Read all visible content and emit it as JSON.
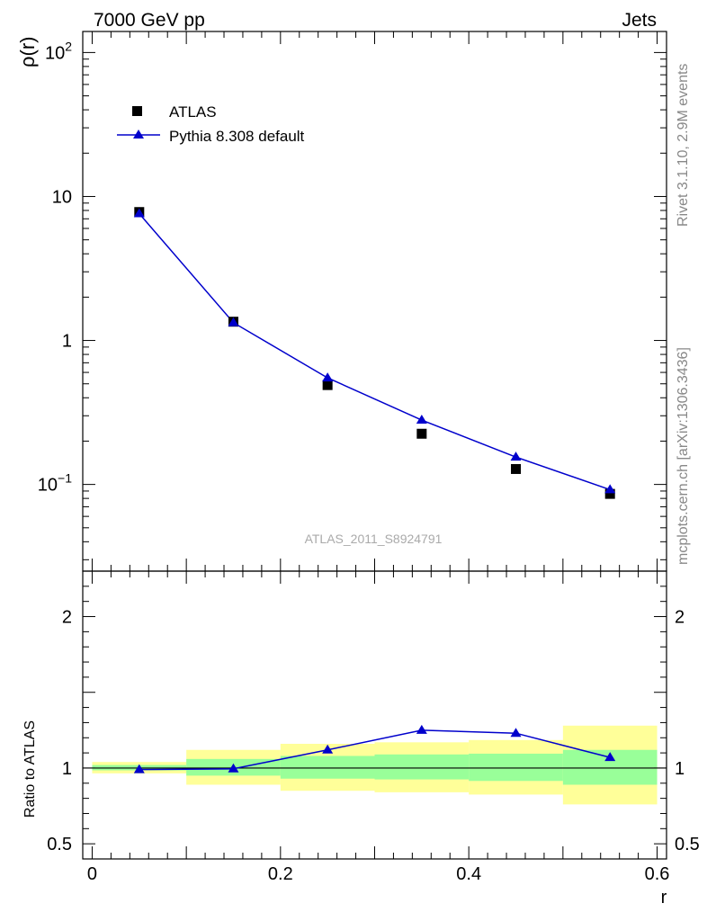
{
  "header": {
    "left_label": "7000 GeV pp",
    "right_label": "Jets"
  },
  "side_labels": {
    "rivet": "Rivet 3.1.10,  2.9M events",
    "mcplots": "mcplots.cern.ch [arXiv:1306.3436]"
  },
  "colors": {
    "data": "#000000",
    "mc": "#0000cc",
    "band_inner": "#99ff99",
    "band_outer": "#ffff99"
  },
  "chart_data": [
    {
      "type": "scatter",
      "panel": "main",
      "title": "",
      "watermark": "ATLAS_2011_S8924791",
      "xlabel": "",
      "ylabel": "ρ(r)",
      "yscale": "log",
      "xlim": [
        -0.01,
        0.61
      ],
      "ylim": [
        0.025,
        140
      ],
      "y_ticks": [
        {
          "value": 0.1,
          "base": "10",
          "exp": "−1"
        },
        {
          "value": 1,
          "label": "1"
        },
        {
          "value": 10,
          "label": "10"
        },
        {
          "value": 100,
          "base": "10",
          "exp": "2"
        }
      ],
      "legend": {
        "position": "top-left",
        "entries": [
          "ATLAS",
          "Pythia 8.308 default"
        ]
      },
      "x": [
        0.05,
        0.15,
        0.25,
        0.35,
        0.45,
        0.55
      ],
      "series": [
        {
          "name": "ATLAS",
          "style": "markers-square",
          "values": [
            7.8,
            1.35,
            0.49,
            0.225,
            0.128,
            0.086
          ]
        },
        {
          "name": "Pythia 8.308 default",
          "style": "line-triangle",
          "values": [
            7.6,
            1.33,
            0.55,
            0.28,
            0.155,
            0.092
          ]
        }
      ]
    },
    {
      "type": "line",
      "panel": "ratio",
      "xlabel": "r",
      "ylabel": "Ratio to ATLAS",
      "xlim": [
        -0.01,
        0.61
      ],
      "ylim": [
        0.4,
        2.3
      ],
      "x_ticks": [
        0,
        0.2,
        0.4,
        0.6
      ],
      "x_tick_labels": [
        "0",
        "0.2",
        "0.4",
        "0.6"
      ],
      "y_ticks": [
        0.5,
        1,
        2
      ],
      "y_tick_labels": [
        "0.5",
        "1",
        "2"
      ],
      "bins": [
        {
          "x_low": 0.0,
          "x_high": 0.1,
          "inner": [
            0.985,
            1.02
          ],
          "outer": [
            0.965,
            1.04
          ]
        },
        {
          "x_low": 0.1,
          "x_high": 0.2,
          "inner": [
            0.95,
            1.06
          ],
          "outer": [
            0.89,
            1.12
          ]
        },
        {
          "x_low": 0.2,
          "x_high": 0.3,
          "inner": [
            0.93,
            1.08
          ],
          "outer": [
            0.85,
            1.16
          ]
        },
        {
          "x_low": 0.3,
          "x_high": 0.4,
          "inner": [
            0.925,
            1.09
          ],
          "outer": [
            0.84,
            1.17
          ]
        },
        {
          "x_low": 0.4,
          "x_high": 0.5,
          "inner": [
            0.915,
            1.095
          ],
          "outer": [
            0.825,
            1.185
          ]
        },
        {
          "x_low": 0.5,
          "x_high": 0.6,
          "inner": [
            0.89,
            1.12
          ],
          "outer": [
            0.76,
            1.28
          ]
        }
      ],
      "x": [
        0.05,
        0.15,
        0.25,
        0.35,
        0.45,
        0.55
      ],
      "series": [
        {
          "name": "Pythia 8.308 default",
          "values": [
            0.99,
            0.995,
            1.12,
            1.25,
            1.23,
            1.07
          ]
        }
      ]
    }
  ]
}
